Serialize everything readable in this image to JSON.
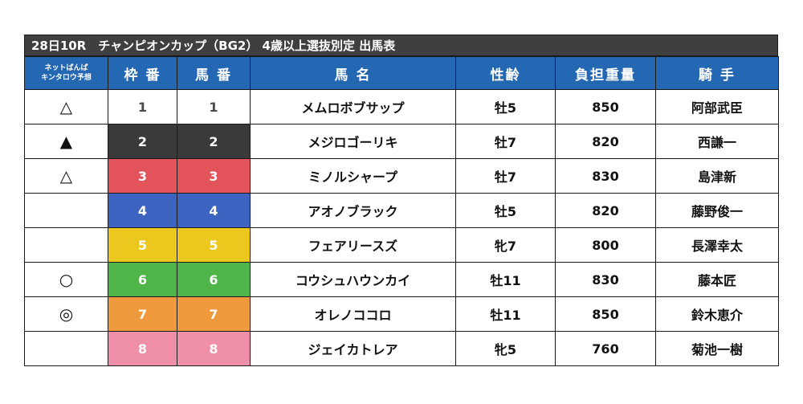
{
  "title": "28日10R　チャンピオンカップ（BG2）  4歳以上選抜別定  出馬表",
  "header": {
    "prediction_line1": "ネットばんば",
    "prediction_line2": "キンタロウ予想",
    "waku": "枠 番",
    "umaban": "馬 番",
    "horse": "馬 名",
    "sex_age": "性齢",
    "weight": "負担重量",
    "jockey": "騎 手"
  },
  "rows": [
    {
      "mark": "△",
      "waku": "1",
      "umaban": "1",
      "horse": "メムロボブサップ",
      "sex_age": "牡5",
      "weight": "850",
      "jockey": "阿部武臣",
      "frame_color": "#ffffff"
    },
    {
      "mark": "▲",
      "waku": "2",
      "umaban": "2",
      "horse": "メジロゴーリキ",
      "sex_age": "牡7",
      "weight": "820",
      "jockey": "西謙一",
      "frame_color": "#3a3a3a"
    },
    {
      "mark": "△",
      "waku": "3",
      "umaban": "3",
      "horse": "ミノルシャープ",
      "sex_age": "牡7",
      "weight": "830",
      "jockey": "島津新",
      "frame_color": "#e2545a"
    },
    {
      "mark": "",
      "waku": "4",
      "umaban": "4",
      "horse": "アオノブラック",
      "sex_age": "牡5",
      "weight": "820",
      "jockey": "藤野俊一",
      "frame_color": "#3d64c0"
    },
    {
      "mark": "",
      "waku": "5",
      "umaban": "5",
      "horse": "フェアリースズ",
      "sex_age": "牝7",
      "weight": "800",
      "jockey": "長澤幸太",
      "frame_color": "#ecc81e"
    },
    {
      "mark": "○",
      "waku": "6",
      "umaban": "6",
      "horse": "コウシュハウンカイ",
      "sex_age": "牡11",
      "weight": "830",
      "jockey": "藤本匠",
      "frame_color": "#4fb548"
    },
    {
      "mark": "◎",
      "waku": "7",
      "umaban": "7",
      "horse": "オレノココロ",
      "sex_age": "牡11",
      "weight": "850",
      "jockey": "鈴木恵介",
      "frame_color": "#ef9a3c"
    },
    {
      "mark": "",
      "waku": "8",
      "umaban": "8",
      "horse": "ジェイカトレア",
      "sex_age": "牝5",
      "weight": "760",
      "jockey": "菊池一樹",
      "frame_color": "#f08fa8"
    }
  ]
}
